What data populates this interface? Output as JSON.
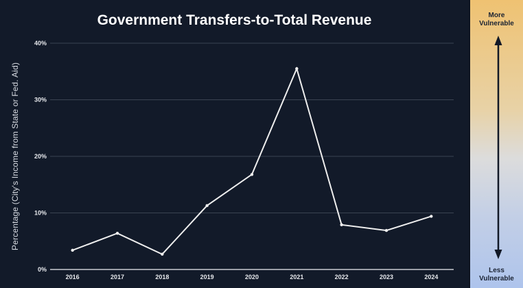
{
  "chart_data": {
    "type": "line",
    "title": "Government Transfers-to-Total Revenue",
    "xlabel": "",
    "ylabel": "Percentage (City's Income from State or Fed. Aid)",
    "categories": [
      "2016",
      "2017",
      "2018",
      "2019",
      "2020",
      "2021",
      "2022",
      "2023",
      "2024"
    ],
    "series": [
      {
        "name": "Government Transfers-to-Total Revenue",
        "values": [
          3.4,
          6.4,
          2.7,
          11.3,
          16.8,
          35.5,
          7.9,
          6.9,
          9.4
        ]
      }
    ],
    "ylim": [
      0,
      40
    ],
    "yticks": [
      0,
      10,
      20,
      30,
      40
    ],
    "ytick_labels": [
      "0%",
      "10%",
      "20%",
      "30%",
      "40%"
    ],
    "grid": true,
    "legend": "none",
    "colors": {
      "background": "#121a29",
      "line": "#eeeeee",
      "grid": "#3b4452"
    }
  },
  "vulnerability_scale": {
    "top_label_line1": "More",
    "top_label_line2": "Vulnerable",
    "bottom_label_line1": "Less",
    "bottom_label_line2": "Vulnerable",
    "colors": {
      "top": "#efc272",
      "bottom": "#aec4ec"
    }
  }
}
